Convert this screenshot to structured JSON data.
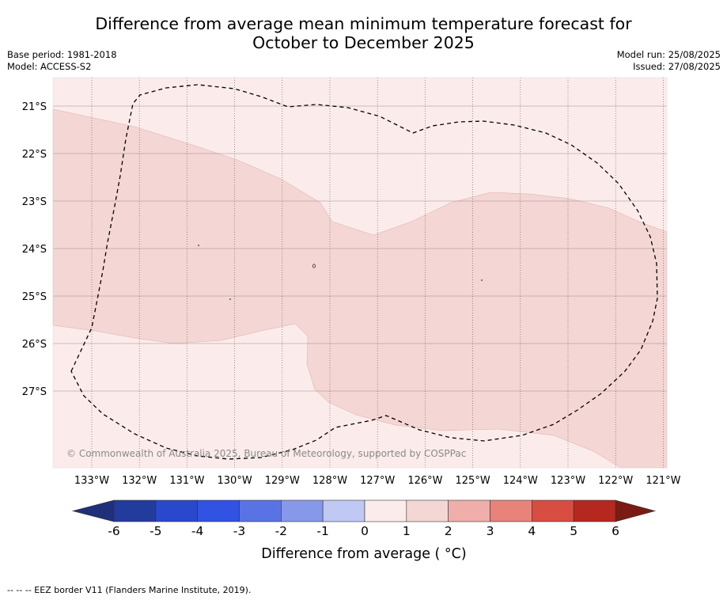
{
  "title": {
    "line1": "Difference from average mean minimum temperature forecast for",
    "line2": "October to December 2025"
  },
  "meta_left": {
    "base_period": "Base period: 1981-2018",
    "model": "Model: ACCESS-S2"
  },
  "meta_right": {
    "model_run": "Model run: 25/08/2025",
    "issued": "Issued: 27/08/2025"
  },
  "map": {
    "lat_labels": [
      "21°S",
      "22°S",
      "23°S",
      "24°S",
      "25°S",
      "26°S",
      "27°S"
    ],
    "lon_labels": [
      "133°W",
      "132°W",
      "131°W",
      "130°W",
      "129°W",
      "128°W",
      "127°W",
      "126°W",
      "125°W",
      "124°W",
      "123°W",
      "122°W",
      "121°W"
    ],
    "copyright": "© Commonwealth of Australia 2025, Bureau of Meteorology, supported by COSPPac",
    "background_category": "0 to 1",
    "region_category": "1 to 2"
  },
  "colorbar": {
    "label": "Difference from average ( °C)",
    "ticks": [
      "-6",
      "-5",
      "-4",
      "-3",
      "-2",
      "-1",
      "0",
      "1",
      "2",
      "3",
      "4",
      "5",
      "6"
    ],
    "colors": [
      "#233b9c",
      "#2a48cc",
      "#3152e3",
      "#5a73e4",
      "#8798ea",
      "#c0c8f4",
      "#e8ebfb",
      "#fbeceb",
      "#f4d6d4",
      "#efaea9",
      "#e8837b",
      "#d84d42",
      "#b5281f"
    ],
    "under_color": "#1f2f7a",
    "over_color": "#7a1b14"
  },
  "footer": "-- -- -- EEZ border V11 (Flanders Marine Institute, 2019)."
}
